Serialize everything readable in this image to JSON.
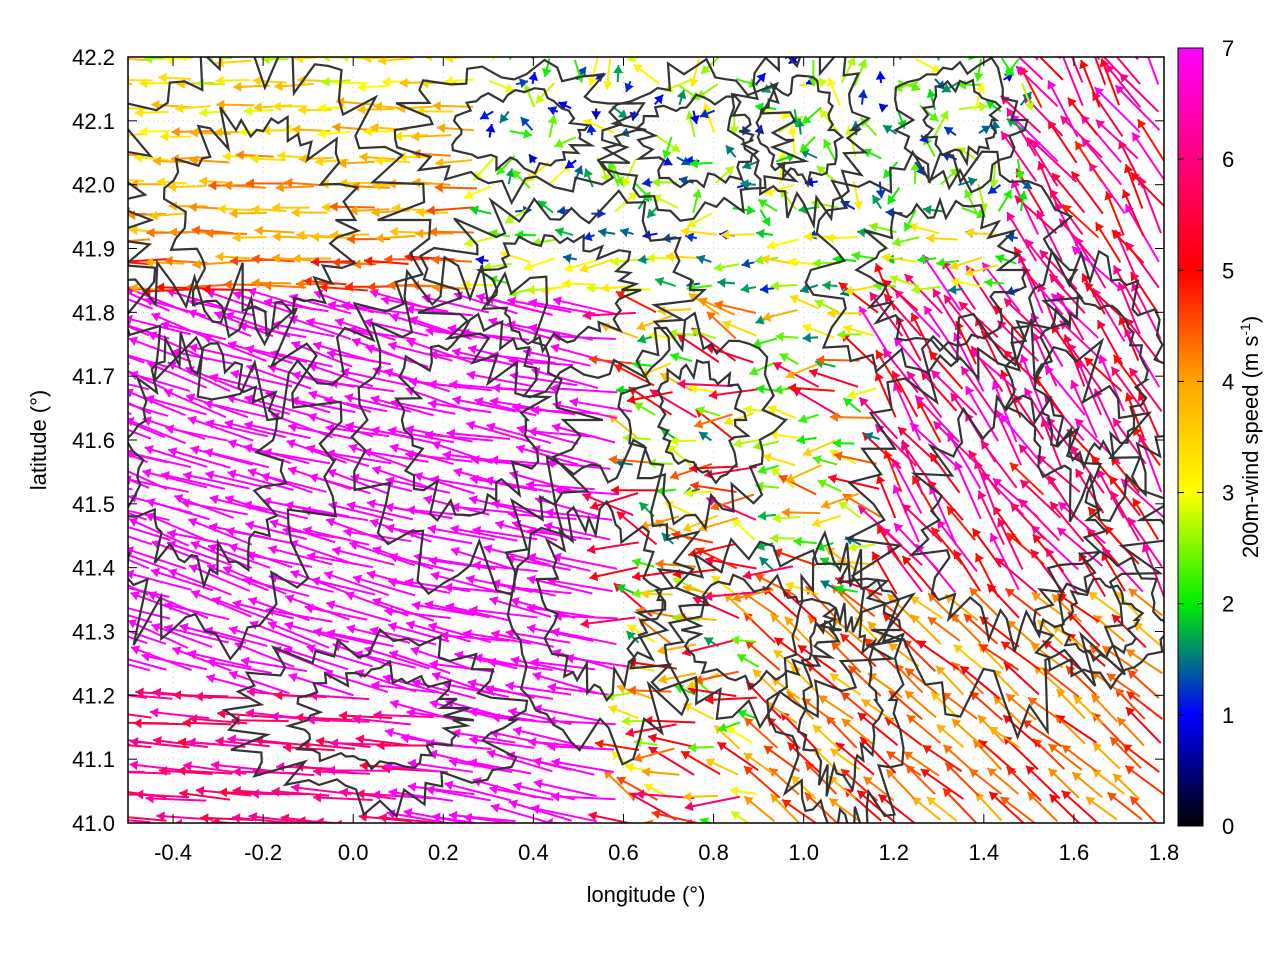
{
  "chart_data": {
    "type": "vector-field-with-contours",
    "xlabel": "longitude (°)",
    "ylabel": "latitude (°)",
    "xlim": [
      -0.5,
      1.8
    ],
    "ylim": [
      41.0,
      42.2
    ],
    "xticks": [
      -0.4,
      -0.2,
      0.0,
      0.2,
      0.4,
      0.6,
      0.8,
      1.0,
      1.2,
      1.4,
      1.6,
      1.8
    ],
    "xtick_labels": [
      "-0.4",
      "-0.2",
      "0.0",
      "0.2",
      "0.4",
      "0.6",
      "0.8",
      "1.0",
      "1.2",
      "1.4",
      "1.6",
      "1.8"
    ],
    "yticks": [
      41.0,
      41.1,
      41.2,
      41.3,
      41.4,
      41.5,
      41.6,
      41.7,
      41.8,
      41.9,
      42.0,
      42.1,
      42.2
    ],
    "ytick_labels": [
      "41.0",
      "41.1",
      "41.2",
      "41.3",
      "41.4",
      "41.5",
      "41.6",
      "41.7",
      "41.8",
      "41.9",
      "42.0",
      "42.1",
      "42.2"
    ],
    "grid": true,
    "colorbar": {
      "label": "200m-wind speed (m s",
      "label_sup": "-1",
      "label_end": ")",
      "range": [
        0,
        7
      ],
      "ticks": [
        0,
        1,
        2,
        3,
        4,
        5,
        6,
        7
      ],
      "tick_labels": [
        "0",
        "1",
        "2",
        "3",
        "4",
        "5",
        "6",
        "7"
      ],
      "palette": [
        "#000000",
        "#0000ff",
        "#00ee00",
        "#ffff00",
        "#ffa500",
        "#ff0000",
        "#ff00ff"
      ]
    },
    "contour_color": "#333333",
    "wind_regions": [
      {
        "region": "west-central",
        "lon": [
          -0.5,
          0.6
        ],
        "lat": [
          41.0,
          41.8
        ],
        "speed_ms": 7.0,
        "direction": "toward west-northwest"
      },
      {
        "region": "north-west",
        "lon": [
          -0.5,
          0.3
        ],
        "lat": [
          41.8,
          42.2
        ],
        "speed_ms": 4.5,
        "direction": "toward west"
      },
      {
        "region": "north-central",
        "lon": [
          0.3,
          1.5
        ],
        "lat": [
          41.8,
          42.2
        ],
        "speed_ms": 1.0,
        "direction": "variable, light"
      },
      {
        "region": "south-east",
        "lon": [
          0.9,
          1.8
        ],
        "lat": [
          41.0,
          41.4
        ],
        "speed_ms": 4.2,
        "direction": "toward northwest"
      },
      {
        "region": "east",
        "lon": [
          1.2,
          1.8
        ],
        "lat": [
          41.4,
          42.0
        ],
        "speed_ms": 5.5,
        "direction": "toward northwest"
      },
      {
        "region": "central-east",
        "lon": [
          0.6,
          1.2
        ],
        "lat": [
          41.3,
          41.8
        ],
        "speed_ms": 2.5,
        "direction": "toward west, weak"
      }
    ]
  }
}
